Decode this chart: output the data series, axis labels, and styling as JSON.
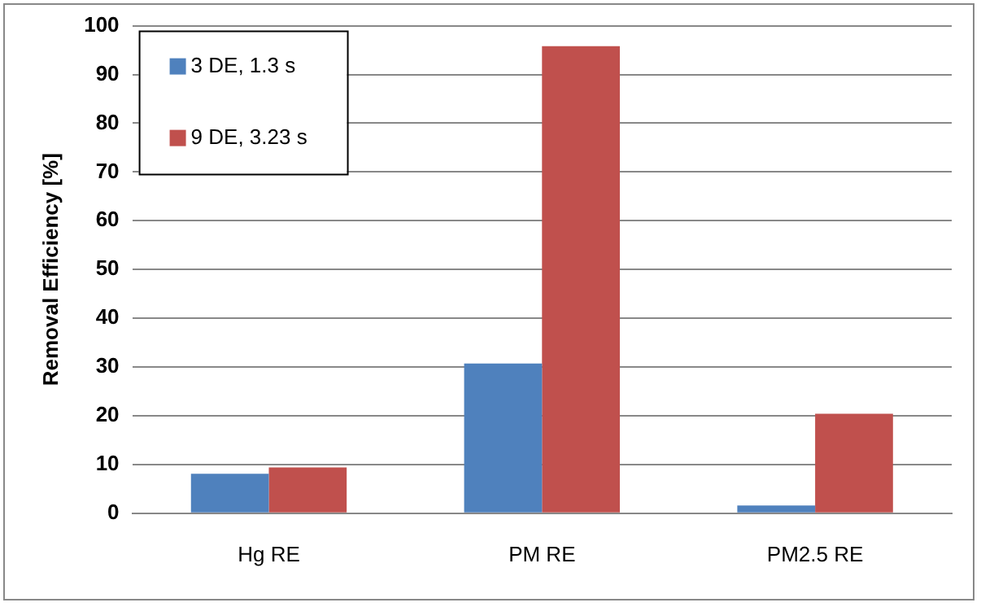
{
  "chart_data": {
    "type": "bar",
    "ylabel": "Removal Efficiency [%]",
    "categories": [
      "Hg RE",
      "PM RE",
      "PM2.5 RE"
    ],
    "series": [
      {
        "name": "3 DE, 1.3 s",
        "color": "#4f81bd",
        "values": [
          8.1,
          30.7,
          1.6
        ]
      },
      {
        "name": "9 DE, 3.23 s",
        "color": "#c0504d",
        "values": [
          9.4,
          95.8,
          20.4
        ]
      }
    ],
    "ylim": [
      0,
      100
    ],
    "yticks": [
      0,
      10,
      20,
      30,
      40,
      50,
      60,
      70,
      80,
      90,
      100
    ],
    "grid": "y",
    "legend": "top left"
  }
}
